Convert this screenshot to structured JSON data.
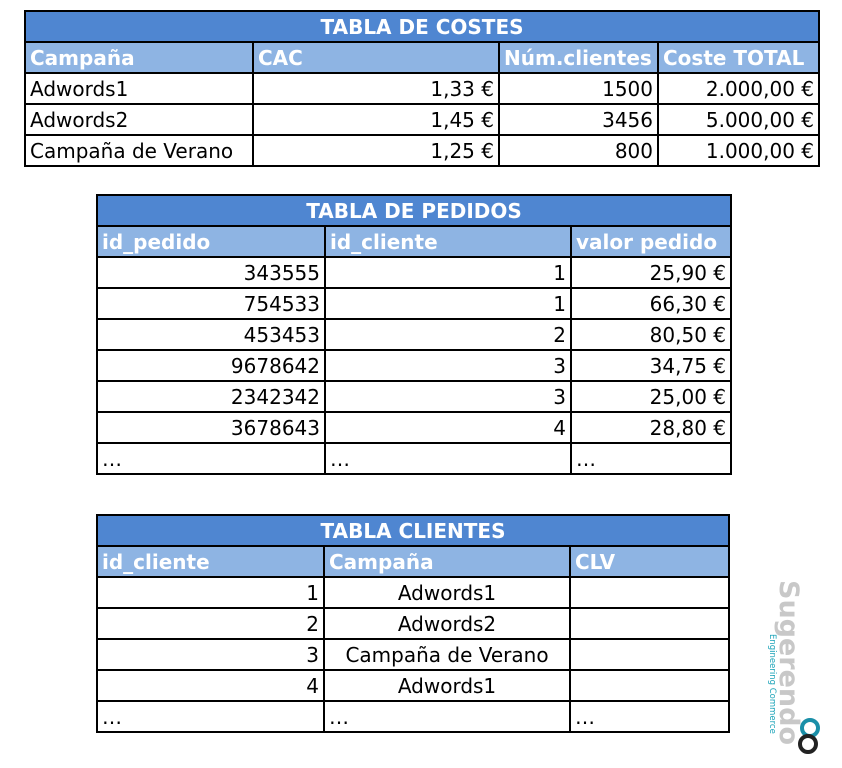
{
  "costes": {
    "title": "TABLA DE COSTES",
    "headers": [
      "Campaña",
      "CAC",
      "Núm.clientes",
      "Coste TOTAL"
    ],
    "rows": [
      [
        "Adwords1",
        "1,33 €",
        "1500",
        "2.000,00 €"
      ],
      [
        "Adwords2",
        "1,45 €",
        "3456",
        "5.000,00 €"
      ],
      [
        "Campaña de Verano",
        "1,25 €",
        "800",
        "1.000,00 €"
      ]
    ]
  },
  "pedidos": {
    "title": "TABLA DE PEDIDOS",
    "headers": [
      "id_pedido",
      "id_cliente",
      "valor pedido"
    ],
    "rows": [
      [
        "343555",
        "1",
        "25,90 €"
      ],
      [
        "754533",
        "1",
        "66,30 €"
      ],
      [
        "453453",
        "2",
        "80,50 €"
      ],
      [
        "9678642",
        "3",
        "34,75 €"
      ],
      [
        "2342342",
        "3",
        "25,00 €"
      ],
      [
        "3678643",
        "4",
        "28,80 €"
      ],
      [
        "…",
        "…",
        "…"
      ]
    ]
  },
  "clientes": {
    "title": "TABLA CLIENTES",
    "headers": [
      "id_cliente",
      "Campaña",
      "CLV"
    ],
    "rows": [
      [
        "1",
        "Adwords1",
        ""
      ],
      [
        "2",
        "Adwords2",
        ""
      ],
      [
        "3",
        "Campaña de Verano",
        ""
      ],
      [
        "4",
        "Adwords1",
        ""
      ],
      [
        "…",
        "…",
        "…"
      ]
    ]
  },
  "logo": {
    "name": "Sugerendo",
    "tagline": "Engineering Commerce",
    "colors": {
      "text": "#c8c8c8",
      "tagline": "#1aa3b8",
      "ring_outer": "#1a8fa8",
      "ring_inner": "#222222"
    }
  }
}
